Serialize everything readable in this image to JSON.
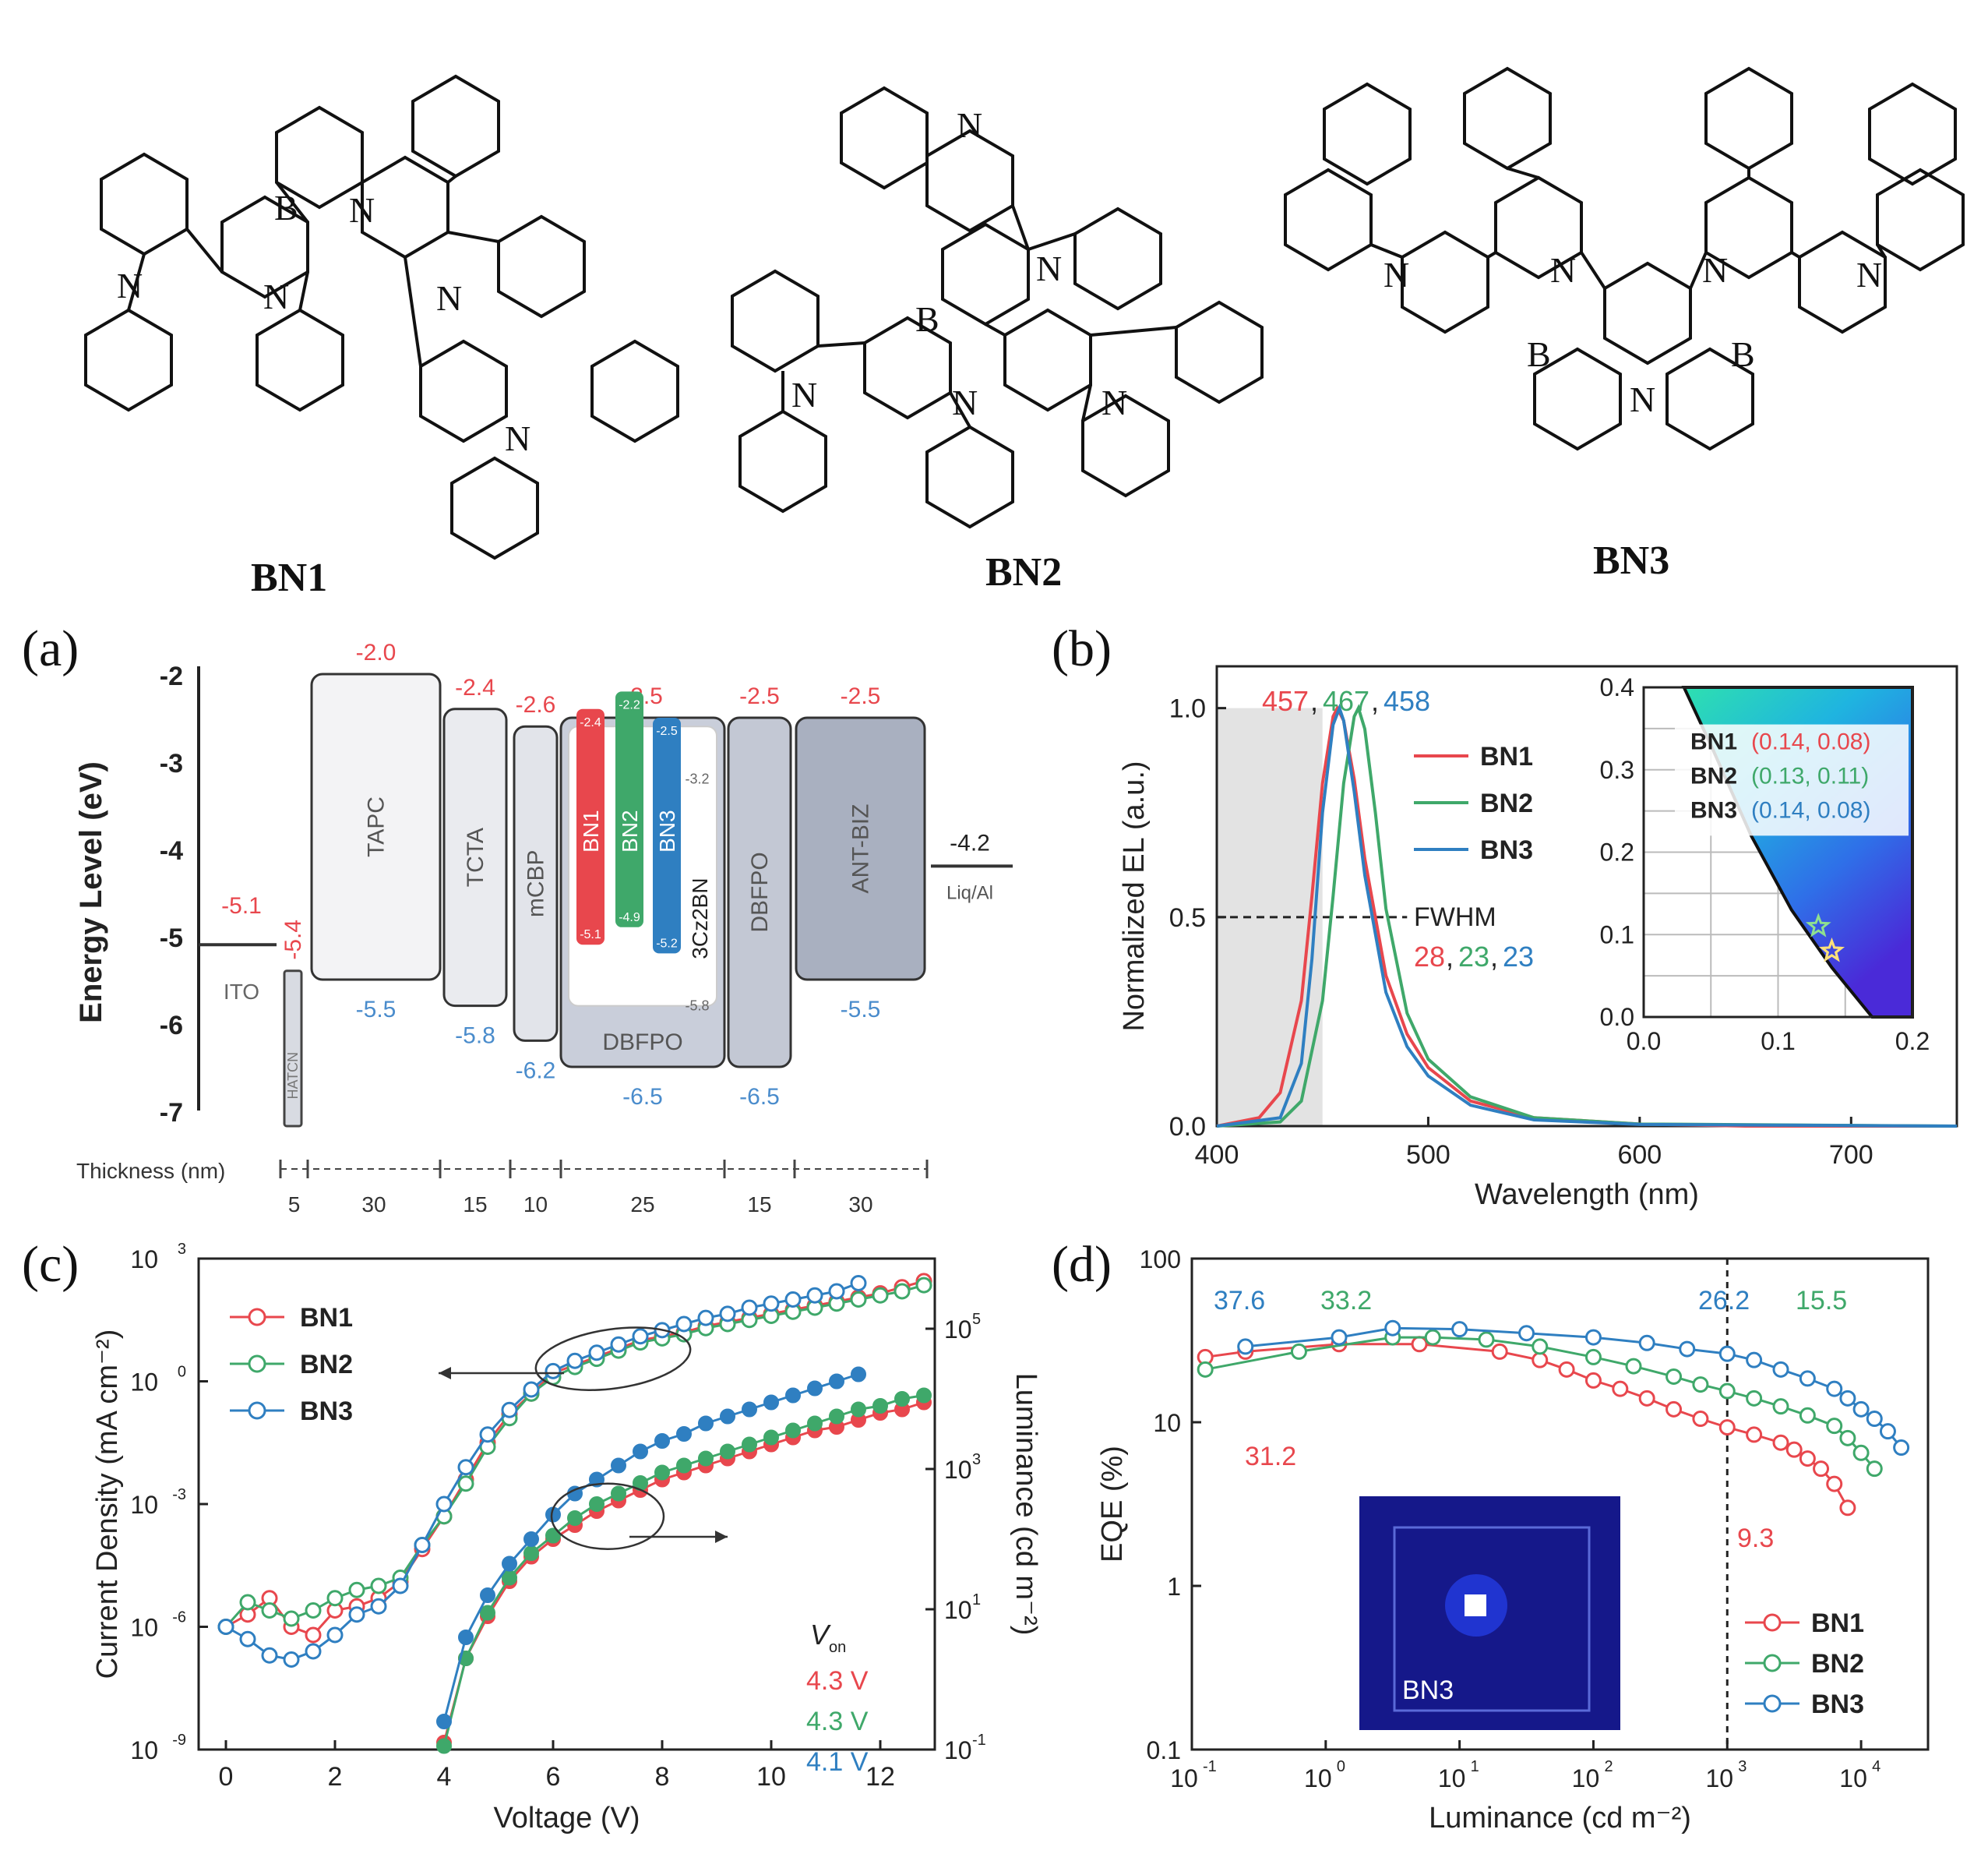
{
  "molecules": [
    {
      "name": "BN1"
    },
    {
      "name": "BN2"
    },
    {
      "name": "BN3"
    }
  ],
  "atoms": {
    "N": "N",
    "B": "B"
  },
  "panels": {
    "a": "(a)",
    "b": "(b)",
    "c": "(c)",
    "d": "(d)"
  },
  "colors": {
    "BN1": "#e8474d",
    "BN2": "#3fa86a",
    "BN3": "#2f7fc1",
    "red_label": "#e8474d",
    "blue_label": "#4a8ccc"
  },
  "chart_data": [
    {
      "panel": "(a)",
      "type": "energy-level-diagram",
      "ylabel": "Energy Level (eV)",
      "ylim": [
        -7,
        -2
      ],
      "yticks": [
        "-2",
        "-3",
        "-4",
        "-5",
        "-6",
        "-7"
      ],
      "thickness_label": "Thickness (nm)",
      "thickness_values": [
        "5",
        "30",
        "15",
        "10",
        "25",
        "15",
        "30"
      ],
      "layers": [
        {
          "name": "ITO",
          "work_function": "-5.1"
        },
        {
          "name": "HATCN",
          "lumo": "-5.4"
        },
        {
          "name": "TAPC",
          "lumo": "-2.0",
          "homo": "-5.5"
        },
        {
          "name": "TCTA",
          "lumo": "-2.4",
          "homo": "-5.8"
        },
        {
          "name": "mCBP",
          "lumo": "-2.6",
          "homo": "-6.2"
        },
        {
          "name": "DBFPO",
          "lumo": "-2.5",
          "homo": "-6.5"
        },
        {
          "name": "DBFPO",
          "lumo": "-2.5",
          "homo": "-6.5"
        },
        {
          "name": "ANT-BIZ",
          "lumo": "-2.5",
          "homo": "-5.5"
        },
        {
          "name": "Liq/Al",
          "work_function": "-4.2"
        }
      ],
      "emitters": [
        {
          "name": "BN1",
          "lumo": "-2.4",
          "homo": "-5.1"
        },
        {
          "name": "BN2",
          "lumo": "-2.2",
          "homo": "-4.9"
        },
        {
          "name": "BN3",
          "lumo": "-2.5",
          "homo": "-5.2"
        },
        {
          "name": "3Cz2BN",
          "lumo": "-3.2",
          "homo": "-5.8"
        }
      ]
    },
    {
      "panel": "(b)",
      "type": "line",
      "xlabel": "Wavelength (nm)",
      "ylabel": "Normalized EL (a.u.)",
      "xlim": [
        400,
        750
      ],
      "ylim": [
        0,
        1.1
      ],
      "xticks": [
        "400",
        "500",
        "600",
        "700"
      ],
      "yticks": [
        "0.0",
        "0.5",
        "1.0"
      ],
      "series": [
        {
          "name": "BN1",
          "x": [
            400,
            420,
            430,
            440,
            445,
            450,
            455,
            457,
            460,
            465,
            470,
            480,
            490,
            500,
            520,
            550,
            600,
            650,
            750
          ],
          "values": [
            0.0,
            0.02,
            0.08,
            0.3,
            0.55,
            0.82,
            0.98,
            1.0,
            0.97,
            0.83,
            0.64,
            0.36,
            0.22,
            0.14,
            0.06,
            0.02,
            0.005,
            0.0,
            0.0
          ]
        },
        {
          "name": "BN2",
          "x": [
            400,
            430,
            440,
            450,
            455,
            460,
            465,
            467,
            470,
            475,
            480,
            490,
            500,
            520,
            550,
            600,
            750
          ],
          "values": [
            0.0,
            0.01,
            0.06,
            0.3,
            0.55,
            0.82,
            0.98,
            1.0,
            0.95,
            0.75,
            0.52,
            0.27,
            0.16,
            0.07,
            0.02,
            0.005,
            0.0
          ]
        },
        {
          "name": "BN3",
          "x": [
            400,
            430,
            440,
            445,
            450,
            455,
            458,
            460,
            465,
            470,
            480,
            490,
            500,
            520,
            550,
            600,
            750
          ],
          "values": [
            0.0,
            0.02,
            0.15,
            0.4,
            0.75,
            0.96,
            1.0,
            0.97,
            0.8,
            0.6,
            0.32,
            0.19,
            0.12,
            0.05,
            0.015,
            0.004,
            0.0
          ]
        }
      ],
      "peaks_label": [
        "457",
        "467",
        "458"
      ],
      "fwhm_title": "FWHM",
      "fwhm_values": [
        "28",
        "23",
        "23"
      ],
      "inset": {
        "xlim": [
          0.0,
          0.2
        ],
        "ylim": [
          0.0,
          0.4
        ],
        "xticks": [
          "0.0",
          "0.1",
          "0.2"
        ],
        "yticks": [
          "0.0",
          "0.1",
          "0.2",
          "0.3",
          "0.4"
        ],
        "points": [
          {
            "name": "BN1",
            "cie": "(0.14, 0.08)",
            "x": 0.14,
            "y": 0.08
          },
          {
            "name": "BN2",
            "cie": "(0.13, 0.11)",
            "x": 0.13,
            "y": 0.11
          },
          {
            "name": "BN3",
            "cie": "(0.14, 0.08)",
            "x": 0.14,
            "y": 0.08
          }
        ]
      }
    },
    {
      "panel": "(c)",
      "type": "scatter",
      "xlabel": "Voltage (V)",
      "ylabel": "Current Density (mA cm⁻²)",
      "y2label": "Luminance (cd m⁻²)",
      "xlim": [
        -0.5,
        13
      ],
      "xticks": [
        "0",
        "2",
        "4",
        "6",
        "8",
        "10",
        "12"
      ],
      "yticks_log": [
        -9,
        -6,
        -3,
        0,
        3
      ],
      "y2ticks_log": [
        -1,
        1,
        3,
        5
      ],
      "von_title": "V",
      "von_sub": "on",
      "von_values": [
        "4.3 V",
        "4.3 V",
        "4.1 V"
      ],
      "current_density_log10": {
        "x": [
          0,
          0.4,
          0.8,
          1.2,
          1.6,
          2.0,
          2.4,
          2.8,
          3.2,
          3.6,
          4.0,
          4.4,
          4.8,
          5.2,
          5.6,
          6.0,
          6.4,
          6.8,
          7.2,
          7.6,
          8.0,
          8.4,
          8.8,
          9.2,
          9.6,
          10.0,
          10.4,
          10.8,
          11.2,
          11.6,
          12.0,
          12.4,
          12.8
        ],
        "BN1": [
          -6.0,
          -5.7,
          -5.3,
          -6.0,
          -6.2,
          -5.6,
          -5.5,
          -5.3,
          -4.9,
          -4.1,
          -3.3,
          -2.4,
          -1.5,
          -0.8,
          -0.3,
          0.2,
          0.4,
          0.6,
          0.8,
          1.0,
          1.1,
          1.2,
          1.35,
          1.45,
          1.55,
          1.65,
          1.75,
          1.85,
          1.95,
          2.05,
          2.15,
          2.3,
          2.45
        ],
        "BN2": [
          -6.0,
          -5.4,
          -5.6,
          -5.8,
          -5.6,
          -5.3,
          -5.1,
          -5.0,
          -4.8,
          -4.0,
          -3.3,
          -2.5,
          -1.6,
          -0.9,
          -0.3,
          0.1,
          0.35,
          0.55,
          0.75,
          0.95,
          1.05,
          1.15,
          1.3,
          1.4,
          1.5,
          1.6,
          1.7,
          1.8,
          1.9,
          2.0,
          2.1,
          2.2,
          2.35
        ],
        "BN3": [
          -6.0,
          -6.3,
          -6.7,
          -6.8,
          -6.6,
          -6.2,
          -5.7,
          -5.5,
          -5.0,
          -4.0,
          -3.0,
          -2.1,
          -1.3,
          -0.7,
          -0.2,
          0.25,
          0.5,
          0.7,
          0.9,
          1.1,
          1.25,
          1.4,
          1.55,
          1.65,
          1.8,
          1.9,
          2.0,
          2.1,
          2.2,
          2.4
        ]
      },
      "luminance_log10": {
        "x": [
          4.0,
          4.4,
          4.8,
          5.2,
          5.6,
          6.0,
          6.4,
          6.8,
          7.2,
          7.6,
          8.0,
          8.4,
          8.8,
          9.2,
          9.6,
          10.0,
          10.4,
          10.8,
          11.2,
          11.6,
          12.0,
          12.4,
          12.8
        ],
        "BN1": [
          -0.9,
          0.3,
          0.9,
          1.4,
          1.75,
          2.0,
          2.2,
          2.4,
          2.55,
          2.7,
          2.85,
          2.95,
          3.05,
          3.15,
          3.25,
          3.35,
          3.45,
          3.55,
          3.6,
          3.7,
          3.8,
          3.85,
          3.95
        ],
        "BN2": [
          -0.95,
          0.3,
          0.95,
          1.45,
          1.8,
          2.05,
          2.3,
          2.5,
          2.65,
          2.8,
          2.95,
          3.05,
          3.15,
          3.25,
          3.35,
          3.45,
          3.55,
          3.65,
          3.75,
          3.85,
          3.9,
          4.0,
          4.05
        ],
        "BN3": [
          -0.6,
          0.6,
          1.2,
          1.65,
          2.0,
          2.35,
          2.65,
          2.85,
          3.05,
          3.25,
          3.4,
          3.5,
          3.65,
          3.75,
          3.85,
          3.95,
          4.05,
          4.15,
          4.25,
          4.35
        ]
      }
    },
    {
      "panel": "(d)",
      "type": "scatter",
      "xlabel": "Luminance (cd m⁻²)",
      "ylabel": "EQE (%)",
      "xlim_log": [
        -1,
        4.5
      ],
      "ylim_log": [
        -1,
        2
      ],
      "xticks_log": [
        -1,
        0,
        1,
        2,
        3,
        4
      ],
      "yticks": [
        "0.1",
        "1",
        "10",
        "100"
      ],
      "reference_line_x": 1000,
      "annotations_left": [
        "37.6",
        "33.2",
        "31.2"
      ],
      "annotations_right": [
        "26.2",
        "15.5",
        "9.3"
      ],
      "inset_label": "BN3",
      "series": [
        {
          "name": "BN1",
          "log_x": [
            -0.9,
            -0.6,
            0.1,
            0.7,
            1.3,
            1.6,
            1.8,
            2.0,
            2.2,
            2.4,
            2.6,
            2.8,
            3.0,
            3.2,
            3.4,
            3.5,
            3.6,
            3.7,
            3.8,
            3.9
          ],
          "values": [
            25,
            27,
            30,
            30,
            27,
            24,
            21,
            18,
            16,
            14,
            12,
            10.5,
            9.3,
            8.4,
            7.5,
            6.8,
            6.0,
            5.2,
            4.2,
            3.0
          ]
        },
        {
          "name": "BN2",
          "log_x": [
            -0.9,
            -0.2,
            0.5,
            0.8,
            1.2,
            1.6,
            2.0,
            2.3,
            2.6,
            2.8,
            3.0,
            3.2,
            3.4,
            3.6,
            3.8,
            3.9,
            4.0,
            4.1
          ],
          "values": [
            21,
            27,
            33,
            33,
            32,
            29,
            25,
            22,
            19,
            17,
            15.5,
            14,
            12.5,
            11,
            9.5,
            8.0,
            6.5,
            5.2
          ]
        },
        {
          "name": "BN3",
          "log_x": [
            -0.6,
            0.1,
            0.5,
            1.0,
            1.5,
            2.0,
            2.4,
            2.7,
            3.0,
            3.2,
            3.4,
            3.6,
            3.8,
            3.9,
            4.0,
            4.1,
            4.2,
            4.3
          ],
          "values": [
            29,
            33,
            37.6,
            37,
            35,
            33,
            30.5,
            28,
            26.2,
            24,
            21,
            18.5,
            16,
            14,
            12,
            10.5,
            8.8,
            7.0
          ]
        }
      ]
    }
  ]
}
